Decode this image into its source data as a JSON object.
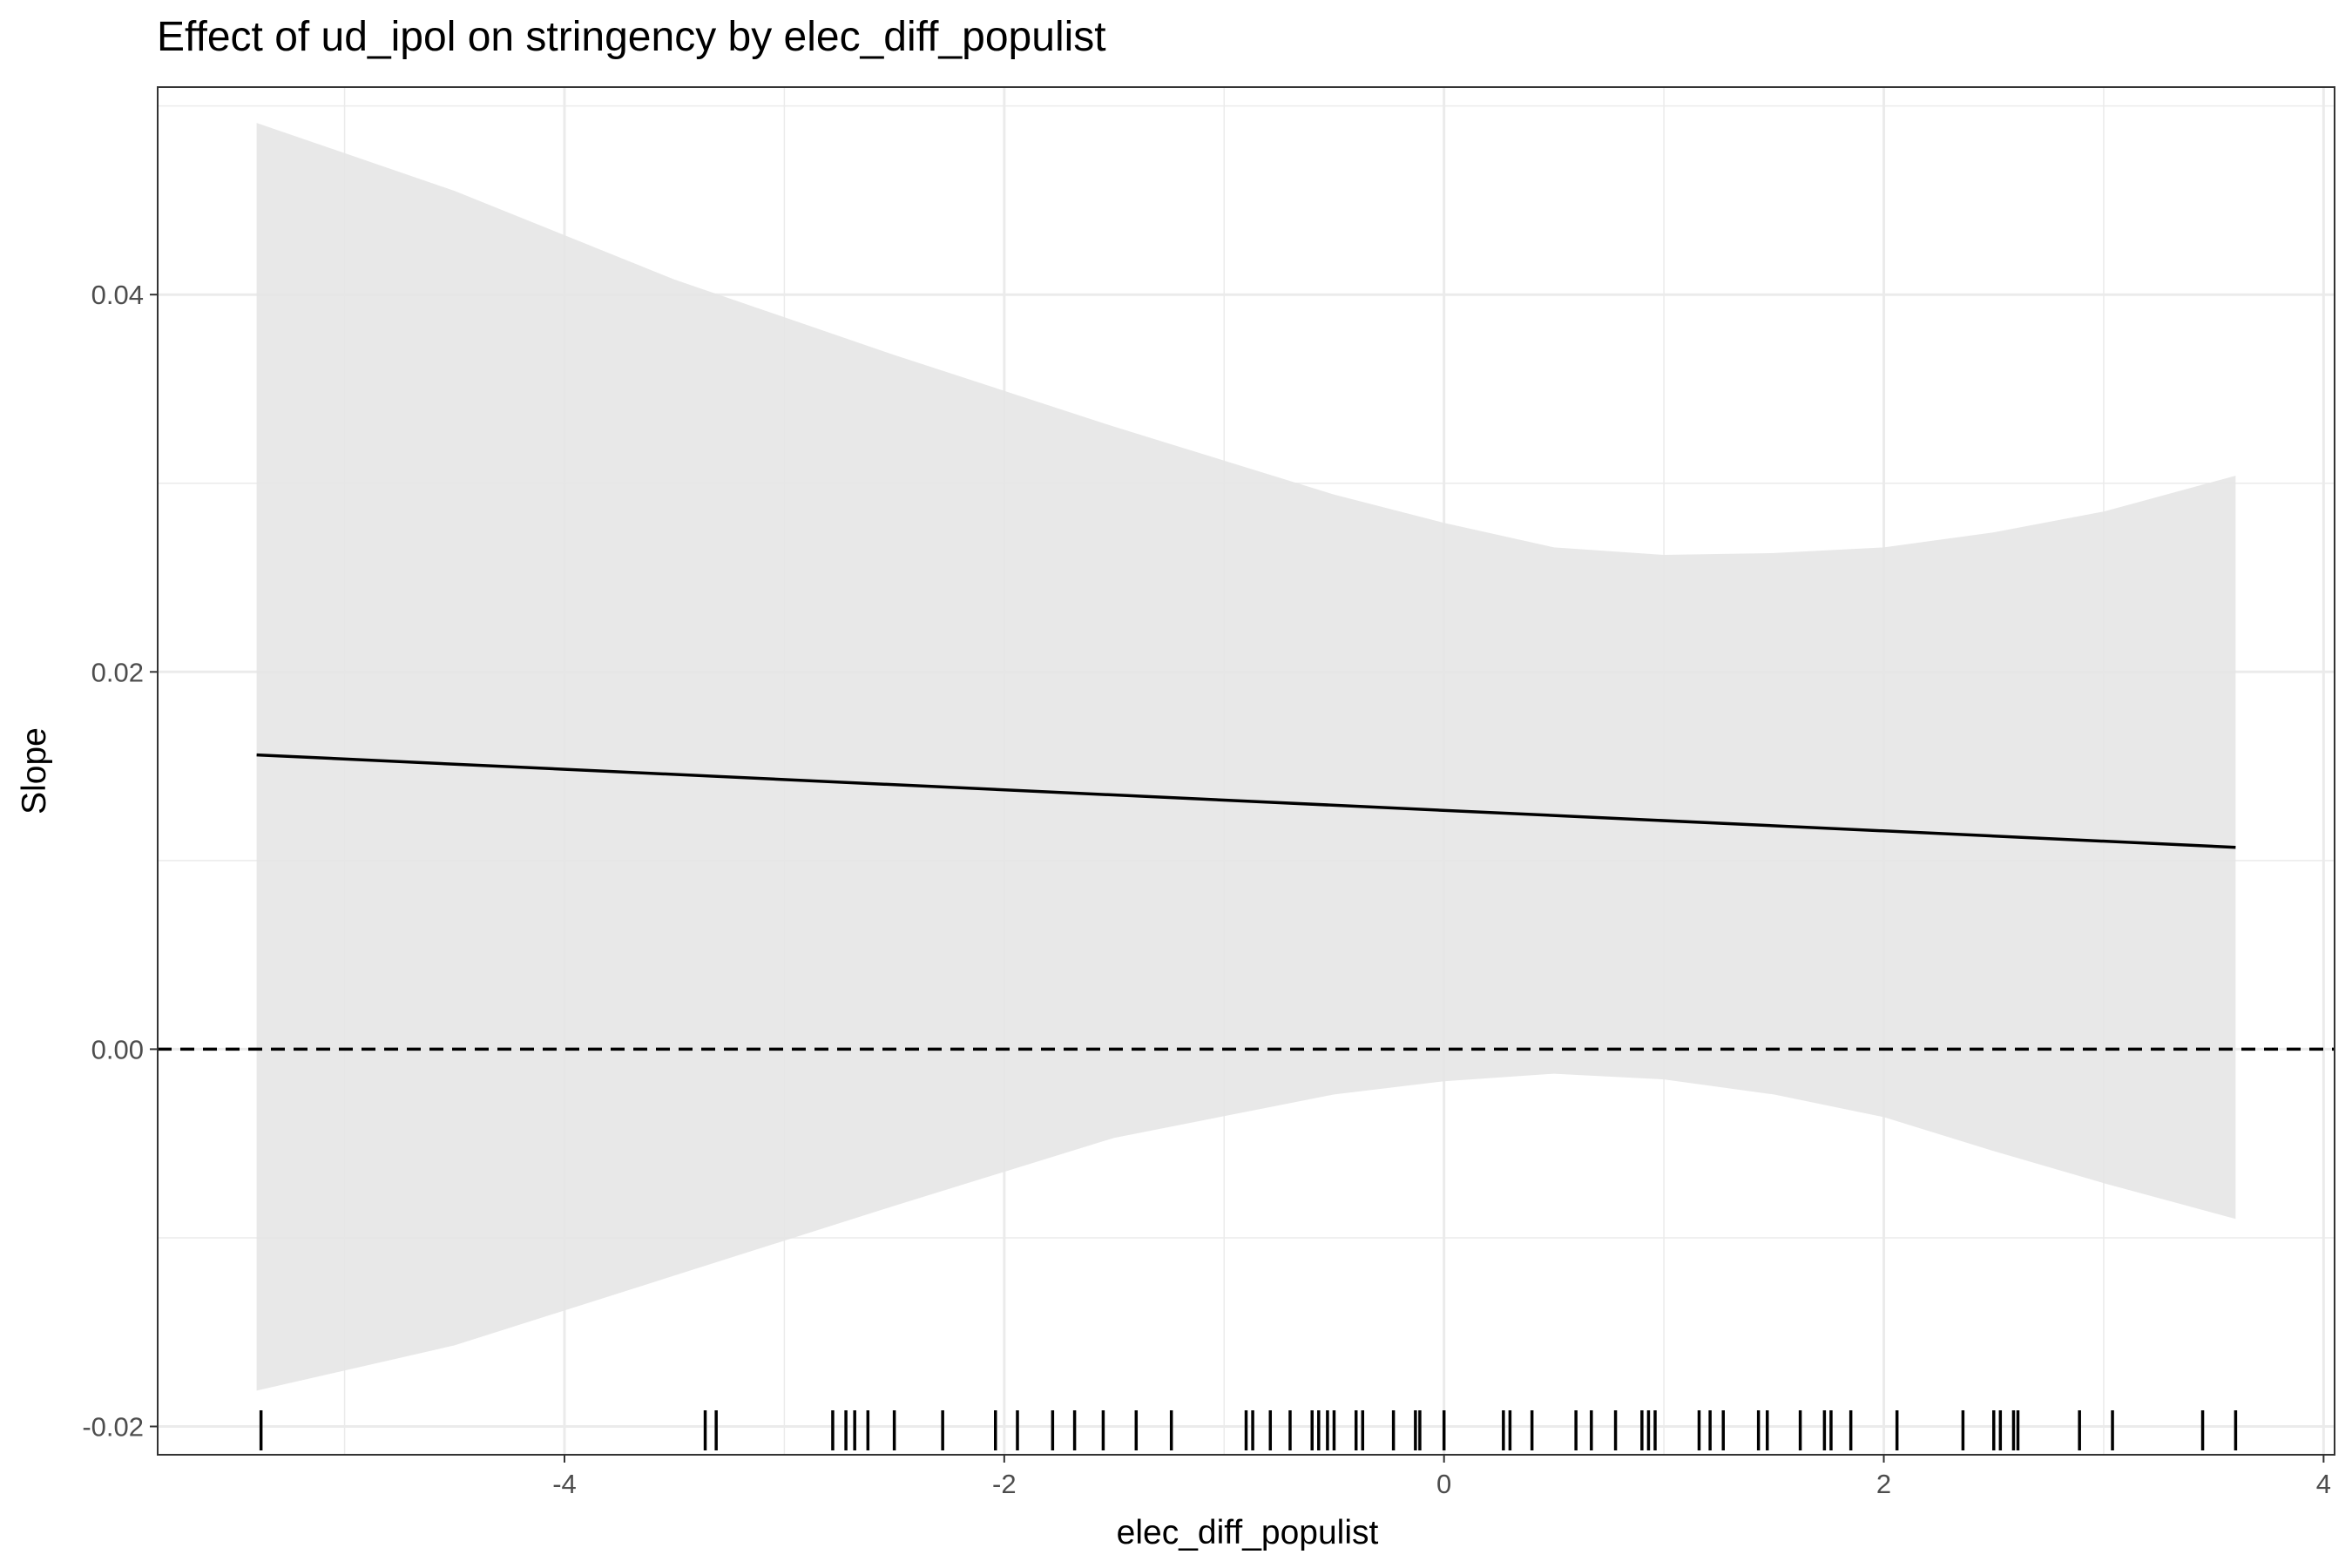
{
  "chart_data": {
    "type": "line",
    "title": "Effect of ud_ipol on stringency by elec_diff_populist",
    "xlabel": "elec_diff_populist",
    "ylabel": "Slope",
    "xlim": [
      -5.85,
      4.05
    ],
    "ylim": [
      -0.0215,
      0.051
    ],
    "x_ticks": [
      -4,
      -2,
      0,
      2,
      4
    ],
    "x_tick_labels": [
      "-4",
      "-2",
      "0",
      "2",
      "4"
    ],
    "y_ticks": [
      -0.02,
      0.0,
      0.02,
      0.04
    ],
    "y_tick_labels": [
      "-0.02",
      "0.00",
      "0.02",
      "0.04"
    ],
    "grid": true,
    "reference_line": {
      "y": 0.0,
      "style": "dashed"
    },
    "series": [
      {
        "x": [
          -5.4,
          3.6
        ],
        "values": [
          0.0156,
          0.0107
        ]
      }
    ],
    "confidence_band": {
      "x": [
        -5.4,
        -4.5,
        -3.5,
        -2.5,
        -1.5,
        -0.5,
        0.0,
        0.5,
        1.0,
        1.5,
        2.0,
        2.5,
        3.0,
        3.6
      ],
      "upper": [
        0.0491,
        0.0455,
        0.0408,
        0.0368,
        0.033,
        0.0294,
        0.0279,
        0.0266,
        0.0262,
        0.0263,
        0.0266,
        0.0274,
        0.0285,
        0.0304
      ],
      "lower": [
        -0.0181,
        -0.0157,
        -0.012,
        -0.0083,
        -0.0047,
        -0.0024,
        -0.0017,
        -0.0013,
        -0.0016,
        -0.0024,
        -0.0036,
        -0.0054,
        -0.0071,
        -0.009
      ]
    },
    "rug": [
      -5.38,
      -3.36,
      -3.31,
      -2.78,
      -2.72,
      -2.68,
      -2.62,
      -2.5,
      -2.28,
      -2.04,
      -1.94,
      -1.78,
      -1.68,
      -1.55,
      -1.4,
      -1.24,
      -0.9,
      -0.87,
      -0.79,
      -0.7,
      -0.6,
      -0.57,
      -0.53,
      -0.5,
      -0.4,
      -0.37,
      -0.23,
      -0.13,
      -0.11,
      0.0,
      0.27,
      0.3,
      0.4,
      0.6,
      0.67,
      0.78,
      0.9,
      0.93,
      0.96,
      1.16,
      1.21,
      1.27,
      1.43,
      1.47,
      1.62,
      1.73,
      1.76,
      1.85,
      2.06,
      2.36,
      2.5,
      2.53,
      2.59,
      2.61,
      2.89,
      3.04,
      3.45,
      3.6
    ]
  }
}
